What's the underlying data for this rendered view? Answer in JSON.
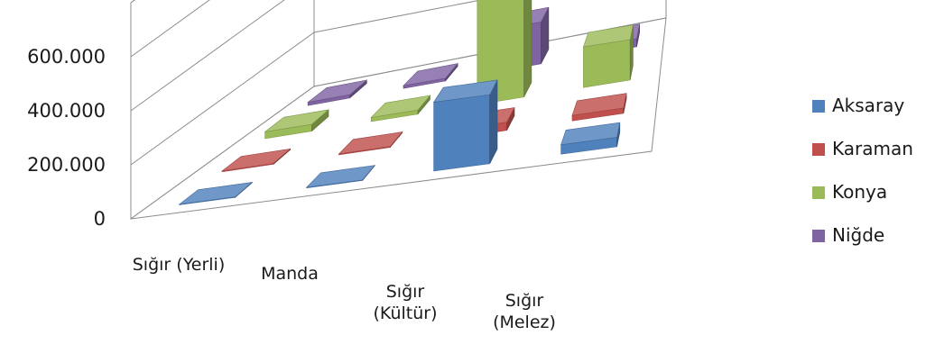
{
  "chart_data": {
    "type": "bar",
    "style": "3d-clustered-depth",
    "categories": [
      "Sığır (Yerli)",
      "Manda",
      "Sığır (Kültür)",
      "Sığır (Melez)"
    ],
    "category_lines": [
      [
        "Sığır (Yerli)"
      ],
      [
        "Manda"
      ],
      [
        "Sığır",
        "(Kültür)"
      ],
      [
        "Sığır",
        "(Melez)"
      ]
    ],
    "series": [
      {
        "name": "Aksaray",
        "color": "#4F81BD",
        "values": [
          2000,
          2000,
          255000,
          35000
        ]
      },
      {
        "name": "Karaman",
        "color": "#C0504D",
        "values": [
          3000,
          3000,
          30000,
          20000
        ]
      },
      {
        "name": "Konya",
        "color": "#9BBB59",
        "values": [
          25000,
          15000,
          500000,
          150000
        ]
      },
      {
        "name": "Niğde",
        "color": "#8064A2",
        "values": [
          12000,
          10000,
          155000,
          30000
        ]
      }
    ],
    "y_ticks": [
      "0",
      "200.000",
      "400.000",
      "600.000"
    ],
    "y_tick_values": [
      0,
      200000,
      400000,
      600000
    ],
    "ylim": [
      0,
      800000
    ],
    "grid": true,
    "legend_position": "right"
  }
}
